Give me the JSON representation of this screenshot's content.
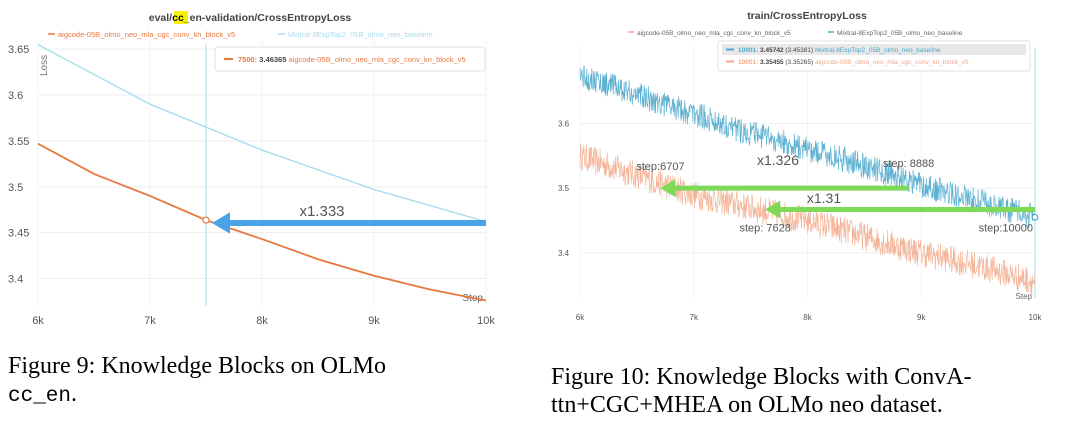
{
  "chart_data": [
    {
      "type": "line",
      "title_parts": [
        "eval/",
        "cc",
        "_en-validation/CrossEntropyLoss"
      ],
      "xlabel": "Step",
      "ylabel": "Loss",
      "xlim": [
        6000,
        10000
      ],
      "ylim": [
        3.37,
        3.66
      ],
      "x_ticks": [
        6000,
        7000,
        8000,
        9000,
        10000
      ],
      "x_tick_labels": [
        "6k",
        "7k",
        "8k",
        "9k",
        "10k"
      ],
      "y_ticks": [
        3.4,
        3.45,
        3.5,
        3.55,
        3.6,
        3.65
      ],
      "y_tick_labels": [
        "3.4",
        "3.45",
        "3.5",
        "3.55",
        "3.6",
        "3.65"
      ],
      "grid": true,
      "series": [
        {
          "name": "aigcode-05B_olmo_neo_mla_cgc_conv_kn_block_v5",
          "color": "#e8783f",
          "x": [
            6000,
            6500,
            7000,
            7500,
            8000,
            8500,
            9000,
            9500,
            10000
          ],
          "y": [
            3.547,
            3.514,
            3.49,
            3.46365,
            3.443,
            3.421,
            3.403,
            3.388,
            3.376
          ]
        },
        {
          "name": "Mixtral-8ExpTop2_05B_olmo_neo_baseline",
          "color": "#a8dced",
          "x": [
            6000,
            7000,
            8000,
            9000,
            10000
          ],
          "y": [
            3.655,
            3.59,
            3.54,
            3.497,
            3.462
          ]
        }
      ],
      "tooltip": {
        "step": "7500",
        "value": "3.46365",
        "series": "aigcode-05B_olmo_neo_mla_cgc_conv_kn_block_v5"
      },
      "cursor_x": 7500,
      "annotations": [
        {
          "text": "x1.333",
          "from": [
            10000,
            3.4605
          ],
          "to": [
            7500,
            3.4605
          ],
          "color": "#4aa3e8"
        }
      ]
    },
    {
      "type": "line",
      "title": "train/CrossEntropyLoss",
      "xlabel": "Step",
      "xlim": [
        6000,
        10000
      ],
      "ylim": [
        3.33,
        3.72
      ],
      "x_ticks": [
        6000,
        7000,
        8000,
        9000,
        10000
      ],
      "x_tick_labels": [
        "6k",
        "7k",
        "8k",
        "9k",
        "10k"
      ],
      "y_ticks": [
        3.4,
        3.5,
        3.6
      ],
      "y_tick_labels": [
        "3.4",
        "3.5",
        "3.6"
      ],
      "grid": true,
      "series": [
        {
          "name": "aigcode-05B_olmo_neo_mla_cgc_conv_kn_block_v5",
          "color": "#f2a98a",
          "x": [
            6000,
            6500,
            7000,
            7500,
            8000,
            8500,
            9000,
            9500,
            10000
          ],
          "y": [
            3.55,
            3.52,
            3.49,
            3.47,
            3.45,
            3.425,
            3.4,
            3.38,
            3.355
          ]
        },
        {
          "name": "Mixtral-8ExpTop2_05B_olmo_neo_baseline",
          "color": "#4aa8cc",
          "x": [
            6000,
            6500,
            7000,
            7500,
            8000,
            8500,
            9000,
            9500,
            10000
          ],
          "y": [
            3.675,
            3.645,
            3.615,
            3.585,
            3.56,
            3.535,
            3.505,
            3.48,
            3.455
          ]
        }
      ],
      "tooltip_rows": [
        {
          "step": "10001",
          "value": "3.45742",
          "smoothed": "(3.45381)",
          "series": "Mixtral-8ExpTop2_05B_olmo_neo_baseline"
        },
        {
          "step": "10001",
          "value": "3.35455",
          "smoothed": "(3.35265)",
          "series": "aigcode-05B_olmo_neo_mla_cgc_conv_kn_block_v5"
        }
      ],
      "cursor_x": 10000,
      "annotations": [
        {
          "text": "x1.326",
          "from": [
            8888,
            3.5
          ],
          "to": [
            6707,
            3.5
          ],
          "color": "#7ed957"
        },
        {
          "text": "x1.31",
          "from": [
            10000,
            3.467
          ],
          "to": [
            7628,
            3.467
          ],
          "color": "#7ed957"
        }
      ],
      "step_labels": [
        {
          "text": "step:6707",
          "x": 6707,
          "y": 3.528
        },
        {
          "text": "step: 8888",
          "x": 8888,
          "y": 3.533
        },
        {
          "text": "step: 7628",
          "x": 7628,
          "y": 3.433
        },
        {
          "text": "step:10000",
          "x": 10000,
          "y": 3.433
        }
      ]
    }
  ],
  "captions": {
    "left_prefix": "Figure 9:  Knowledge Blocks on OLMo",
    "left_code": "cc_en",
    "left_suffix": ".",
    "right_line1": "Figure 10: Knowledge Blocks with ConvA-",
    "right_line2": "ttn+CGC+MHEA on OLMo neo dataset."
  }
}
